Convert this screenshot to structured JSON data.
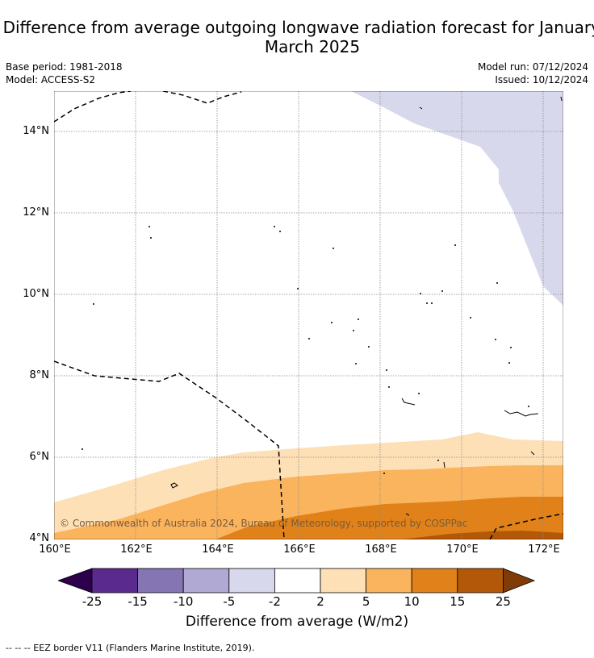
{
  "title": "Difference from average outgoing longwave radiation forecast for January to March 2025",
  "meta": {
    "base_period": "Base period: 1981-2018",
    "model": "Model: ACCESS-S2",
    "model_run": "Model run: 07/12/2024",
    "issued": "Issued: 10/12/2024"
  },
  "map": {
    "lat_labels": [
      "14°N",
      "12°N",
      "10°N",
      "8°N",
      "6°N",
      "4°N"
    ],
    "lon_labels": [
      "160°E",
      "162°E",
      "164°E",
      "166°E",
      "168°E",
      "170°E",
      "172°E"
    ],
    "lon_range": [
      160,
      172.5
    ],
    "lat_range": [
      4,
      15
    ],
    "copyright": "© Commonwealth of Australia 2024, Bureau of Meteorology, supported by COSPPac"
  },
  "colorbar": {
    "title": "Difference from average (W/m2)",
    "labels": [
      "-25",
      "-15",
      "-10",
      "-5",
      "-2",
      "2",
      "5",
      "10",
      "15",
      "25"
    ],
    "colors": [
      "#5b2a8e",
      "#8575b2",
      "#b0a9d3",
      "#d8d8ec",
      "#ffffff",
      "#fee0b6",
      "#fbb45e",
      "#e08219",
      "#b35809"
    ],
    "under_color": "#2d004b",
    "over_color": "#7f3b08"
  },
  "footnote": "--  --  -- EEZ border V11 (Flanders Marine Institute, 2019)."
}
